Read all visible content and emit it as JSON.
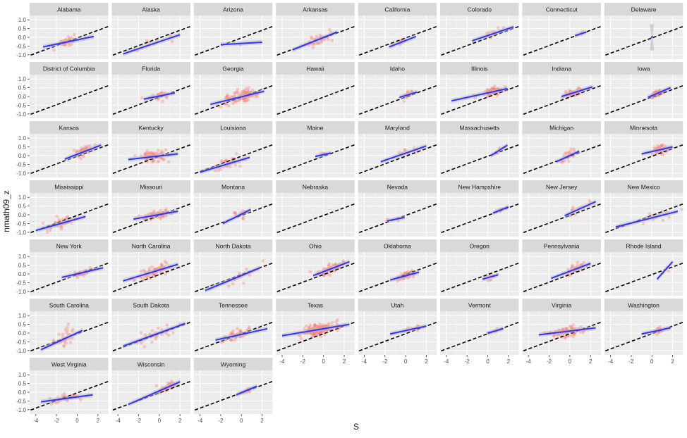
{
  "chart_data": {
    "type": "scatter",
    "xlabel": "S",
    "ylabel": "nmath09_z",
    "xlim": [
      -4.6,
      3
    ],
    "ylim": [
      -1.25,
      1.25
    ],
    "x_ticks": [
      -4,
      -2,
      0,
      2
    ],
    "x_tick_labels": [
      "-4",
      "-2",
      "0",
      "2"
    ],
    "y_ticks": [
      -1,
      -0.5,
      0,
      0.5,
      1
    ],
    "y_tick_labels": [
      "-1.0",
      "-0.5",
      "0.0",
      "0.5",
      "1.0"
    ],
    "grid": true,
    "reference_line": {
      "style": "dashed",
      "color": "#000000",
      "x": [
        -4.5,
        3
      ],
      "y": [
        -1.02,
        0.62
      ]
    },
    "colors": {
      "points": "#f8766d",
      "fit": "#3333ff",
      "ribbon": "#bfbfbf",
      "panel": "#ebebeb",
      "strip": "#d9d9d9"
    },
    "panels": [
      {
        "state": "Alabama",
        "fit": [
          -3.3,
          -0.55,
          1.6,
          0.05
        ],
        "points": {
          "center": [
            -1.0,
            -0.3
          ],
          "spread": [
            1.1,
            0.2
          ],
          "n": 40
        }
      },
      {
        "state": "Alaska",
        "fit": [
          -3.5,
          -0.95,
          2.0,
          0.15
        ],
        "points": {
          "center": [
            -1.0,
            -0.2
          ],
          "spread": [
            1.5,
            0.3
          ],
          "n": 8
        }
      },
      {
        "state": "Arizona",
        "fit": [
          -2.0,
          -0.42,
          2.0,
          -0.28
        ],
        "points": {
          "center": [
            0.0,
            -0.35
          ],
          "spread": [
            1.0,
            0.1
          ],
          "n": 2
        }
      },
      {
        "state": "Arkansas",
        "fit": [
          -3.0,
          -0.72,
          1.3,
          0.3
        ],
        "points": {
          "center": [
            -0.5,
            -0.05
          ],
          "spread": [
            1.0,
            0.3
          ],
          "n": 40
        }
      },
      {
        "state": "California",
        "fit": [
          -1.6,
          -0.55,
          1.0,
          0.05
        ],
        "points": {
          "center": [
            -0.3,
            -0.3
          ],
          "spread": [
            0.8,
            0.15
          ],
          "n": 12
        }
      },
      {
        "state": "Colorado",
        "fit": [
          -1.5,
          -0.2,
          2.5,
          0.6
        ],
        "points": {
          "center": [
            0.5,
            0.2
          ],
          "spread": [
            1.0,
            0.2
          ],
          "n": 15
        }
      },
      {
        "state": "Connecticut",
        "fit": [
          0.5,
          0.1,
          1.6,
          0.3
        ],
        "points": {
          "center": [
            1.0,
            0.2
          ],
          "spread": [
            0.4,
            0.1
          ],
          "n": 3
        }
      },
      {
        "state": "Delaware",
        "fit": [
          0.0,
          -0.05,
          0.0,
          0.08
        ],
        "points": {
          "center": [
            0.0,
            0.0
          ],
          "spread": [
            0.0,
            0.0
          ],
          "n": 0
        }
      },
      {
        "state": "District of Columbia",
        "fit": null,
        "points": {
          "center": [
            0.0,
            0.0
          ],
          "spread": [
            0.0,
            0.0
          ],
          "n": 0
        }
      },
      {
        "state": "Florida",
        "fit": [
          -1.5,
          -0.15,
          1.5,
          0.2
        ],
        "points": {
          "center": [
            0.0,
            0.0
          ],
          "spread": [
            0.9,
            0.2
          ],
          "n": 25
        }
      },
      {
        "state": "Georgia",
        "fit": [
          -3.0,
          -0.45,
          2.2,
          0.3
        ],
        "points": {
          "center": [
            -0.2,
            0.0
          ],
          "spread": [
            1.4,
            0.3
          ],
          "n": 110
        }
      },
      {
        "state": "Hawaii",
        "fit": null,
        "points": {
          "center": [
            0.0,
            0.0
          ],
          "spread": [
            0.0,
            0.0
          ],
          "n": 0
        }
      },
      {
        "state": "Idaho",
        "fit": [
          -0.6,
          -0.05,
          1.1,
          0.25
        ],
        "points": {
          "center": [
            0.3,
            0.1
          ],
          "spread": [
            0.6,
            0.15
          ],
          "n": 15
        }
      },
      {
        "state": "Illinois",
        "fit": [
          -3.5,
          -0.25,
          1.9,
          0.45
        ],
        "points": {
          "center": [
            0.5,
            0.25
          ],
          "spread": [
            0.9,
            0.2
          ],
          "n": 70
        }
      },
      {
        "state": "Indiana",
        "fit": [
          -0.8,
          0.0,
          2.2,
          0.55
        ],
        "points": {
          "center": [
            0.3,
            0.25
          ],
          "spread": [
            0.8,
            0.15
          ],
          "n": 50
        }
      },
      {
        "state": "Iowa",
        "fit": [
          -0.4,
          -0.05,
          1.8,
          0.5
        ],
        "points": {
          "center": [
            0.6,
            0.2
          ],
          "spread": [
            0.6,
            0.15
          ],
          "n": 50
        }
      },
      {
        "state": "Kansas",
        "fit": [
          -1.2,
          -0.2,
          2.3,
          0.6
        ],
        "points": {
          "center": [
            0.6,
            0.2
          ],
          "spread": [
            0.8,
            0.25
          ],
          "n": 40
        }
      },
      {
        "state": "Kentucky",
        "fit": [
          -3.0,
          -0.22,
          1.8,
          0.1
        ],
        "points": {
          "center": [
            -0.6,
            -0.1
          ],
          "spread": [
            1.1,
            0.25
          ],
          "n": 70
        }
      },
      {
        "state": "Louisiana",
        "fit": [
          -4.0,
          -0.95,
          0.8,
          -0.1
        ],
        "points": {
          "center": [
            -1.2,
            -0.35
          ],
          "spread": [
            1.2,
            0.25
          ],
          "n": 40
        }
      },
      {
        "state": "Maine",
        "fit": [
          -0.8,
          -0.05,
          0.7,
          0.15
        ],
        "points": {
          "center": [
            0.0,
            0.0
          ],
          "spread": [
            0.5,
            0.1
          ],
          "n": 5
        }
      },
      {
        "state": "Maryland",
        "fit": [
          -2.4,
          -0.35,
          2.0,
          0.55
        ],
        "points": {
          "center": [
            0.2,
            0.1
          ],
          "spread": [
            1.1,
            0.25
          ],
          "n": 15
        }
      },
      {
        "state": "Massachusetts",
        "fit": [
          0.3,
          0.0,
          1.9,
          0.6
        ],
        "points": {
          "center": [
            1.0,
            0.3
          ],
          "spread": [
            0.5,
            0.15
          ],
          "n": 5
        }
      },
      {
        "state": "Michigan",
        "fit": [
          -1.3,
          -0.35,
          0.9,
          0.25
        ],
        "points": {
          "center": [
            -0.2,
            0.0
          ],
          "spread": [
            0.6,
            0.25
          ],
          "n": 25
        }
      },
      {
        "state": "Minnesota",
        "fit": [
          -1.0,
          0.1,
          2.0,
          0.5
        ],
        "points": {
          "center": [
            0.8,
            0.35
          ],
          "spread": [
            0.7,
            0.2
          ],
          "n": 45
        }
      },
      {
        "state": "Mississippi",
        "fit": [
          -4.0,
          -0.9,
          0.8,
          -0.1
        ],
        "points": {
          "center": [
            -1.6,
            -0.5
          ],
          "spread": [
            1.3,
            0.25
          ],
          "n": 45
        }
      },
      {
        "state": "Missouri",
        "fit": [
          -2.5,
          -0.25,
          1.8,
          0.2
        ],
        "points": {
          "center": [
            -0.2,
            0.0
          ],
          "spread": [
            1.0,
            0.2
          ],
          "n": 80
        }
      },
      {
        "state": "Montana",
        "fit": [
          -1.8,
          -0.5,
          0.9,
          0.3
        ],
        "points": {
          "center": [
            0.0,
            0.0
          ],
          "spread": [
            0.9,
            0.25
          ],
          "n": 15
        }
      },
      {
        "state": "Nebraska",
        "fit": null,
        "points": {
          "center": [
            0.0,
            0.0
          ],
          "spread": [
            0.0,
            0.0
          ],
          "n": 0
        }
      },
      {
        "state": "Nevada",
        "fit": [
          -1.8,
          -0.35,
          -0.1,
          -0.15
        ],
        "points": {
          "center": [
            -1.0,
            -0.25
          ],
          "spread": [
            0.6,
            0.1
          ],
          "n": 3
        }
      },
      {
        "state": "New Hampshire",
        "fit": [
          0.5,
          0.1,
          2.0,
          0.45
        ],
        "points": {
          "center": [
            1.2,
            0.25
          ],
          "spread": [
            0.5,
            0.1
          ],
          "n": 6
        }
      },
      {
        "state": "New Jersey",
        "fit": [
          -0.5,
          -0.05,
          2.5,
          0.75
        ],
        "points": {
          "center": [
            0.8,
            0.3
          ],
          "spread": [
            0.9,
            0.2
          ],
          "n": 12
        }
      },
      {
        "state": "New Mexico",
        "fit": [
          -3.5,
          -0.7,
          2.5,
          0.2
        ],
        "points": {
          "center": [
            0.0,
            -0.25
          ],
          "spread": [
            1.8,
            0.25
          ],
          "n": 12
        }
      },
      {
        "state": "New York",
        "fit": [
          -1.5,
          -0.2,
          2.5,
          0.35
        ],
        "points": {
          "center": [
            0.6,
            0.1
          ],
          "spread": [
            0.7,
            0.15
          ],
          "n": 35
        }
      },
      {
        "state": "North Carolina",
        "fit": [
          -3.5,
          -0.4,
          1.8,
          0.55
        ],
        "points": {
          "center": [
            -0.5,
            0.05
          ],
          "spread": [
            1.4,
            0.3
          ],
          "n": 70
        }
      },
      {
        "state": "North Dakota",
        "fit": [
          -3.5,
          -0.95,
          1.8,
          0.35
        ],
        "points": {
          "center": [
            0.0,
            0.0
          ],
          "spread": [
            1.3,
            0.3
          ],
          "n": 20
        }
      },
      {
        "state": "Ohio",
        "fit": [
          -1.0,
          -0.1,
          2.5,
          0.7
        ],
        "points": {
          "center": [
            0.6,
            0.3
          ],
          "spread": [
            1.0,
            0.2
          ],
          "n": 60
        }
      },
      {
        "state": "Oklahoma",
        "fit": [
          -1.5,
          -0.35,
          1.3,
          0.1
        ],
        "points": {
          "center": [
            0.0,
            -0.1
          ],
          "spread": [
            0.8,
            0.2
          ],
          "n": 45
        }
      },
      {
        "state": "Oregon",
        "fit": [
          -0.5,
          -0.3,
          1.0,
          -0.05
        ],
        "points": {
          "center": [
            0.2,
            -0.15
          ],
          "spread": [
            0.6,
            0.15
          ],
          "n": 10
        }
      },
      {
        "state": "Pennsylvania",
        "fit": [
          -1.8,
          -0.25,
          2.0,
          0.6
        ],
        "points": {
          "center": [
            0.6,
            0.3
          ],
          "spread": [
            0.9,
            0.2
          ],
          "n": 40
        }
      },
      {
        "state": "Rhode Island",
        "fit": [
          0.5,
          -0.3,
          2.0,
          0.7
        ],
        "points": {
          "center": [
            1.5,
            0.3
          ],
          "spread": [
            0.4,
            0.2
          ],
          "n": 3
        }
      },
      {
        "state": "South Carolina",
        "fit": [
          -3.5,
          -0.95,
          0.5,
          0.15
        ],
        "points": {
          "center": [
            -1.2,
            -0.3
          ],
          "spread": [
            1.0,
            0.35
          ],
          "n": 30
        }
      },
      {
        "state": "South Dakota",
        "fit": [
          -3.5,
          -0.75,
          2.5,
          0.55
        ],
        "points": {
          "center": [
            0.0,
            0.0
          ],
          "spread": [
            1.5,
            0.3
          ],
          "n": 30
        }
      },
      {
        "state": "Tennessee",
        "fit": [
          -2.5,
          -0.4,
          2.5,
          0.25
        ],
        "points": {
          "center": [
            -0.5,
            -0.2
          ],
          "spread": [
            1.0,
            0.25
          ],
          "n": 50
        }
      },
      {
        "state": "Texas",
        "fit": [
          -4.0,
          -0.15,
          2.5,
          0.5
        ],
        "points": {
          "center": [
            -0.5,
            0.1
          ],
          "spread": [
            1.5,
            0.25
          ],
          "n": 150
        }
      },
      {
        "state": "Utah",
        "fit": [
          -1.5,
          -0.05,
          2.0,
          0.4
        ],
        "points": {
          "center": [
            0.5,
            0.15
          ],
          "spread": [
            0.8,
            0.15
          ],
          "n": 12
        }
      },
      {
        "state": "Vermont",
        "fit": [
          0.0,
          0.0,
          1.5,
          0.25
        ],
        "points": {
          "center": [
            0.8,
            0.15
          ],
          "spread": [
            0.5,
            0.1
          ],
          "n": 5
        }
      },
      {
        "state": "Virginia",
        "fit": [
          -3.0,
          -0.1,
          2.5,
          0.3
        ],
        "points": {
          "center": [
            -0.2,
            0.05
          ],
          "spread": [
            1.5,
            0.25
          ],
          "n": 90
        }
      },
      {
        "state": "Washington",
        "fit": [
          -1.0,
          -0.05,
          1.8,
          0.3
        ],
        "points": {
          "center": [
            0.5,
            0.15
          ],
          "spread": [
            0.7,
            0.15
          ],
          "n": 20
        }
      },
      {
        "state": "West Virginia",
        "fit": [
          -3.5,
          -0.55,
          1.5,
          -0.15
        ],
        "points": {
          "center": [
            -1.0,
            -0.35
          ],
          "spread": [
            1.2,
            0.2
          ],
          "n": 40
        }
      },
      {
        "state": "Wisconsin",
        "fit": [
          -3.0,
          -0.7,
          2.0,
          0.6
        ],
        "points": {
          "center": [
            0.5,
            0.25
          ],
          "spread": [
            0.9,
            0.2
          ],
          "n": 45
        }
      },
      {
        "state": "Wyoming",
        "fit": [
          -0.5,
          -0.15,
          1.5,
          0.35
        ],
        "points": {
          "center": [
            0.5,
            0.1
          ],
          "spread": [
            0.6,
            0.15
          ],
          "n": 12
        }
      }
    ]
  }
}
